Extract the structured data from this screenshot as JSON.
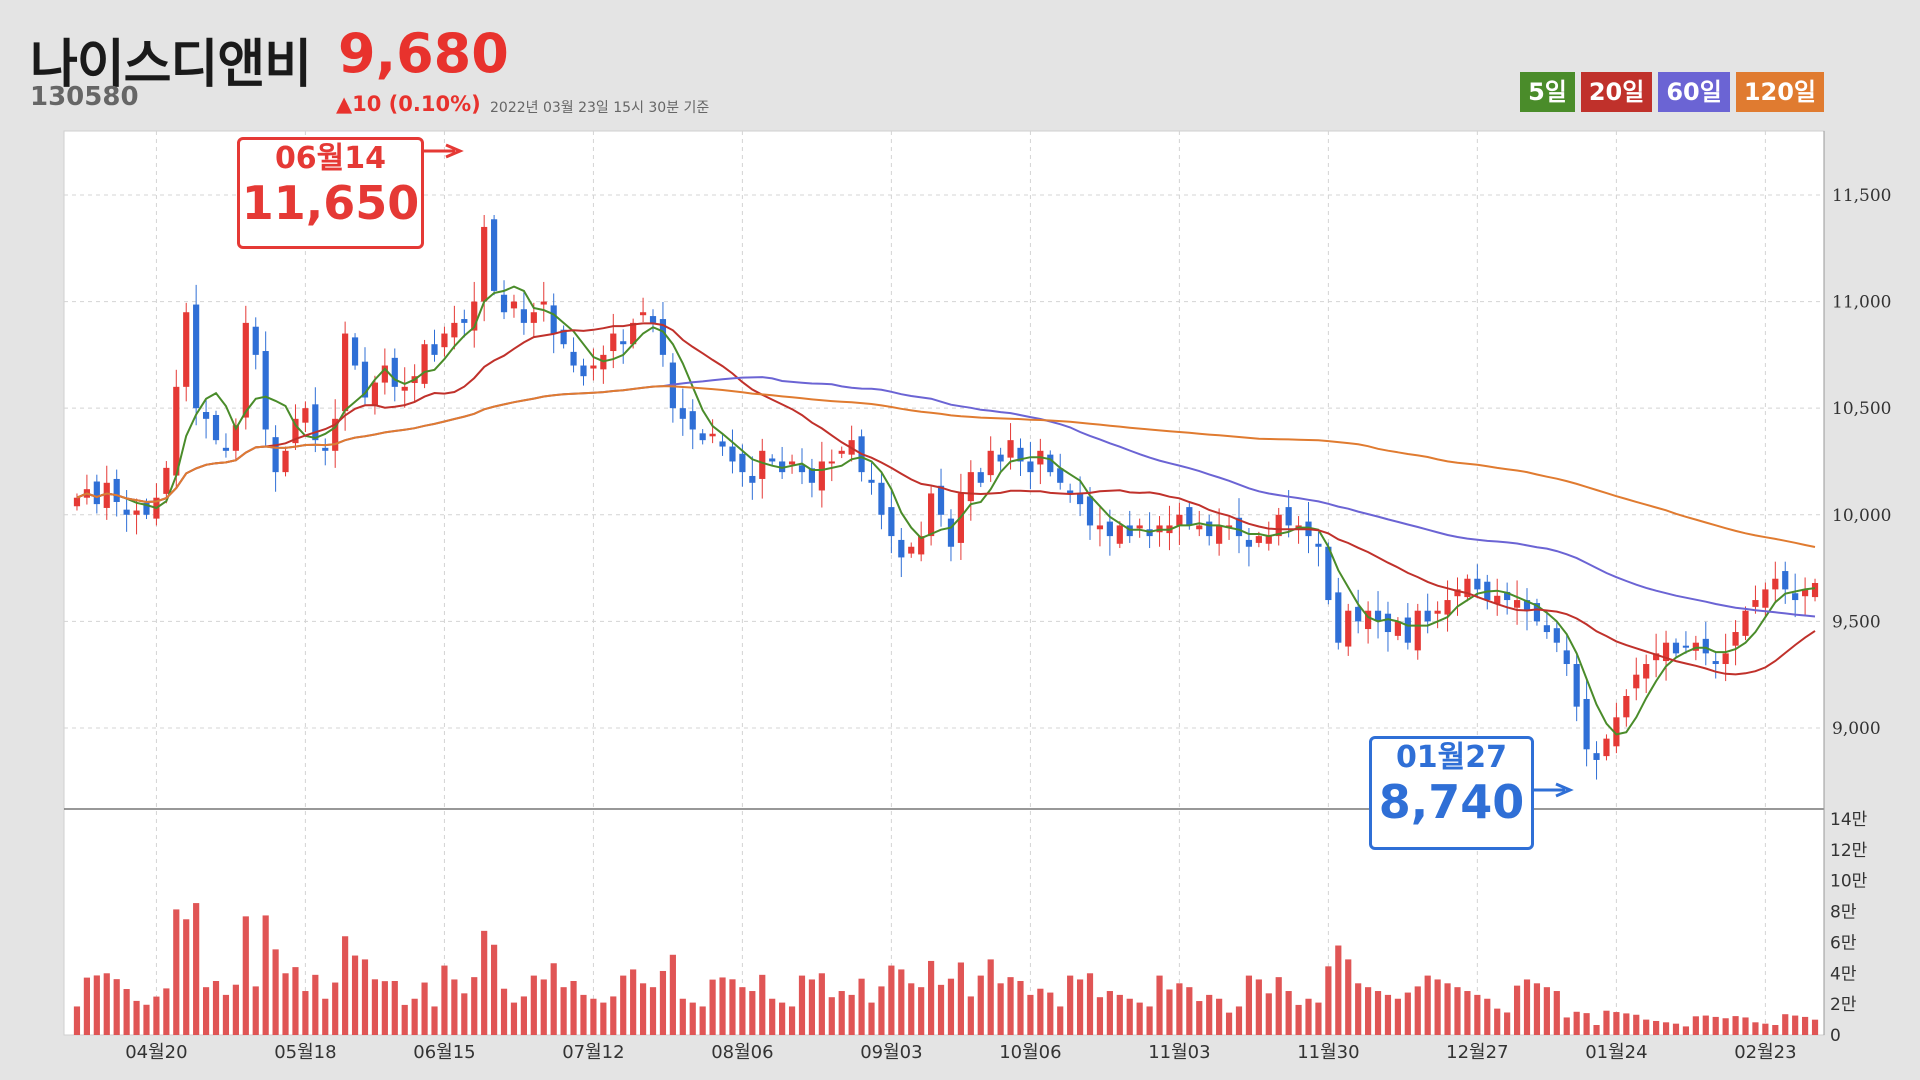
{
  "header": {
    "name": "나이스디앤비",
    "price": "9,680",
    "code": "130580",
    "change": "▲10 (0.10%)",
    "timestamp": "2022년 03월 23일 15시 30분 기준"
  },
  "legend": [
    {
      "label": "5일",
      "color": "#4a8c2a"
    },
    {
      "label": "20일",
      "color": "#c0312b"
    },
    {
      "label": "60일",
      "color": "#6b64d4"
    },
    {
      "label": "120일",
      "color": "#e07b30"
    }
  ],
  "callouts": {
    "high": {
      "date": "06월14",
      "value": "11,650"
    },
    "low": {
      "date": "01월27",
      "value": "8,740"
    }
  },
  "colors": {
    "up": "#e53935",
    "down": "#2f6fd6",
    "volume": "#e05555"
  },
  "chart_data": {
    "type": "candlestick",
    "x_tick_labels": [
      "04월20",
      "05월18",
      "06월15",
      "07월12",
      "08월06",
      "09월03",
      "10월06",
      "11월03",
      "11월30",
      "12월27",
      "01월24",
      "02월23"
    ],
    "price_axis": {
      "ticks": [
        9000,
        9500,
        10000,
        10500,
        11000,
        11500
      ],
      "tick_labels": [
        "9,000",
        "9,500",
        "10,000",
        "10,500",
        "11,000",
        "11,500"
      ],
      "range": [
        8620,
        11800
      ]
    },
    "volume_axis": {
      "ticks": [
        0,
        20000,
        40000,
        60000,
        80000,
        100000,
        120000,
        140000
      ],
      "tick_labels": [
        "0",
        "2만",
        "4만",
        "6만",
        "8만",
        "10만",
        "12만",
        "14만"
      ],
      "range": [
        0,
        140000
      ]
    },
    "closes": [
      10080,
      10120,
      10050,
      10150,
      10060,
      10000,
      10020,
      10000,
      10080,
      10220,
      10600,
      10950,
      10500,
      10450,
      10350,
      10300,
      10420,
      10900,
      10750,
      10400,
      10200,
      10300,
      10450,
      10500,
      10350,
      10300,
      10450,
      10850,
      10700,
      10550,
      10620,
      10700,
      10600,
      10600,
      10650,
      10800,
      10750,
      10850,
      10900,
      10900,
      11000,
      11350,
      11050,
      10950,
      11000,
      10900,
      10950,
      11000,
      10850,
      10800,
      10700,
      10650,
      10700,
      10750,
      10850,
      10800,
      10900,
      10950,
      10900,
      10750,
      10500,
      10450,
      10400,
      10350,
      10380,
      10320,
      10250,
      10200,
      10150,
      10300,
      10250,
      10200,
      10250,
      10200,
      10150,
      10250,
      10250,
      10300,
      10350,
      10200,
      10150,
      10000,
      9900,
      9800,
      9850,
      9900,
      10100,
      10000,
      9850,
      10100,
      10200,
      10150,
      10300,
      10250,
      10350,
      10250,
      10200,
      10300,
      10200,
      10150,
      10100,
      10050,
      9950,
      9950,
      9900,
      9950,
      9900,
      9950,
      9900,
      9950,
      9950,
      10000,
      9950,
      9950,
      9900,
      9950,
      9950,
      9900,
      9850,
      9900,
      9900,
      10000,
      9950,
      9950,
      9900,
      9850,
      9600,
      9400,
      9550,
      9500,
      9550,
      9500,
      9450,
      9500,
      9400,
      9550,
      9500,
      9550,
      9600,
      9650,
      9700,
      9650,
      9600,
      9620,
      9600,
      9600,
      9550,
      9500,
      9450,
      9400,
      9300,
      9100,
      8900,
      8850,
      8950,
      9050,
      9150,
      9250,
      9300,
      9350,
      9400,
      9350,
      9380,
      9400,
      9350,
      9300,
      9350,
      9450,
      9550,
      9600,
      9650,
      9700,
      9650,
      9600,
      9650,
      9680
    ],
    "moving_averages": [
      {
        "name": "5일",
        "color": "#4a8c2a"
      },
      {
        "name": "20일",
        "color": "#c0312b"
      },
      {
        "name": "60일",
        "color": "#6b64d4"
      },
      {
        "name": "120일",
        "color": "#e07b30"
      }
    ],
    "annotations": [
      {
        "label": "06월14",
        "value": 11650
      },
      {
        "label": "01월27",
        "value": 8740
      }
    ]
  }
}
